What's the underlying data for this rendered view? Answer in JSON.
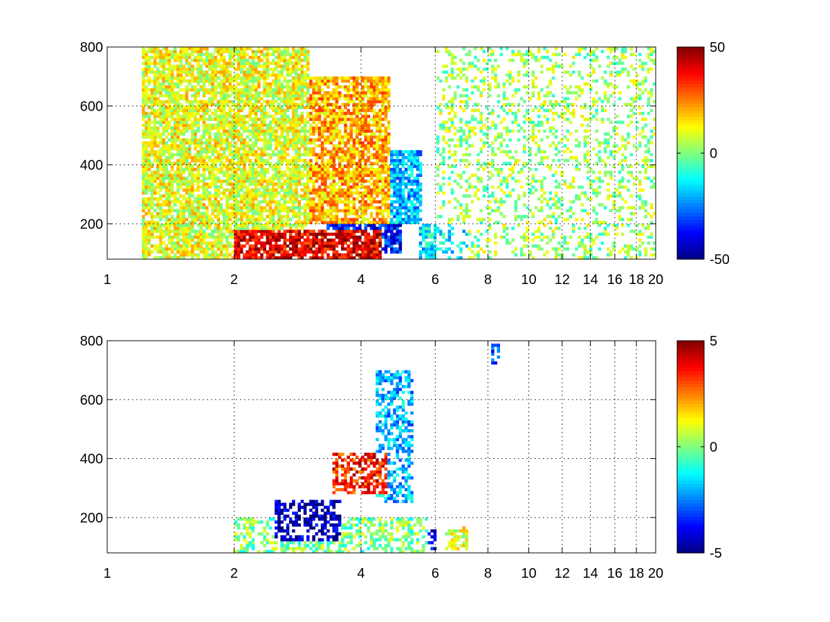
{
  "chart_data": [
    {
      "type": "heatmap",
      "title": "",
      "xlabel": "",
      "ylabel": "",
      "xlim": [
        1,
        20
      ],
      "ylim": [
        80,
        800
      ],
      "x_scale": "log",
      "x_ticks": [
        1,
        2,
        4,
        6,
        8,
        10,
        12,
        14,
        16,
        18,
        20
      ],
      "y_ticks": [
        200,
        400,
        600,
        800
      ],
      "grid": true,
      "colormap": "jet",
      "clim": [
        -50,
        50
      ],
      "colorbar_ticks": [
        -50,
        0,
        50
      ],
      "colorbar_placement": "right",
      "background": "#ffffff",
      "regions": [
        {
          "x_range": [
            2,
            4.5
          ],
          "y_range": [
            80,
            180
          ],
          "value": 40
        },
        {
          "x_range": [
            3.3,
            5
          ],
          "y_range": [
            100,
            200
          ],
          "value": -35
        },
        {
          "x_range": [
            3,
            4.7
          ],
          "y_range": [
            200,
            700
          ],
          "value": 20
        },
        {
          "x_range": [
            4.2,
            5.6
          ],
          "y_range": [
            200,
            450
          ],
          "value": -20
        },
        {
          "x_range": [
            5.5,
            7.2
          ],
          "y_range": [
            80,
            200
          ],
          "value": -15
        },
        {
          "x_range": [
            1.2,
            3
          ],
          "y_range": [
            80,
            800
          ],
          "value": 10
        },
        {
          "x_range": [
            6,
            20
          ],
          "y_range": [
            80,
            800
          ],
          "value": 3
        }
      ]
    },
    {
      "type": "heatmap",
      "title": "",
      "xlabel": "",
      "ylabel": "",
      "xlim": [
        1,
        20
      ],
      "ylim": [
        80,
        800
      ],
      "x_scale": "log",
      "x_ticks": [
        1,
        2,
        4,
        6,
        8,
        10,
        12,
        14,
        16,
        18,
        20
      ],
      "y_ticks": [
        200,
        400,
        600,
        800
      ],
      "grid": true,
      "colormap": "jet",
      "clim": [
        -5,
        5
      ],
      "colorbar_ticks": [
        -5,
        0,
        5
      ],
      "colorbar_placement": "right",
      "background": "#ffffff",
      "regions": [
        {
          "x_range": [
            2.5,
            3.6
          ],
          "y_range": [
            120,
            260
          ],
          "value": -4.5
        },
        {
          "x_range": [
            3.4,
            4.6
          ],
          "y_range": [
            280,
            420
          ],
          "value": 3.5
        },
        {
          "x_range": [
            4.3,
            5.3
          ],
          "y_range": [
            250,
            700
          ],
          "value": -2
        },
        {
          "x_range": [
            2,
            5.8
          ],
          "y_range": [
            80,
            200
          ],
          "value": 0
        },
        {
          "x_range": [
            5.3,
            6
          ],
          "y_range": [
            90,
            160
          ],
          "value": -4
        },
        {
          "x_range": [
            6.3,
            7.2
          ],
          "y_range": [
            90,
            170
          ],
          "value": 1
        },
        {
          "x_range": [
            8.2,
            8.5
          ],
          "y_range": [
            720,
            790
          ],
          "value": -3
        }
      ]
    }
  ]
}
